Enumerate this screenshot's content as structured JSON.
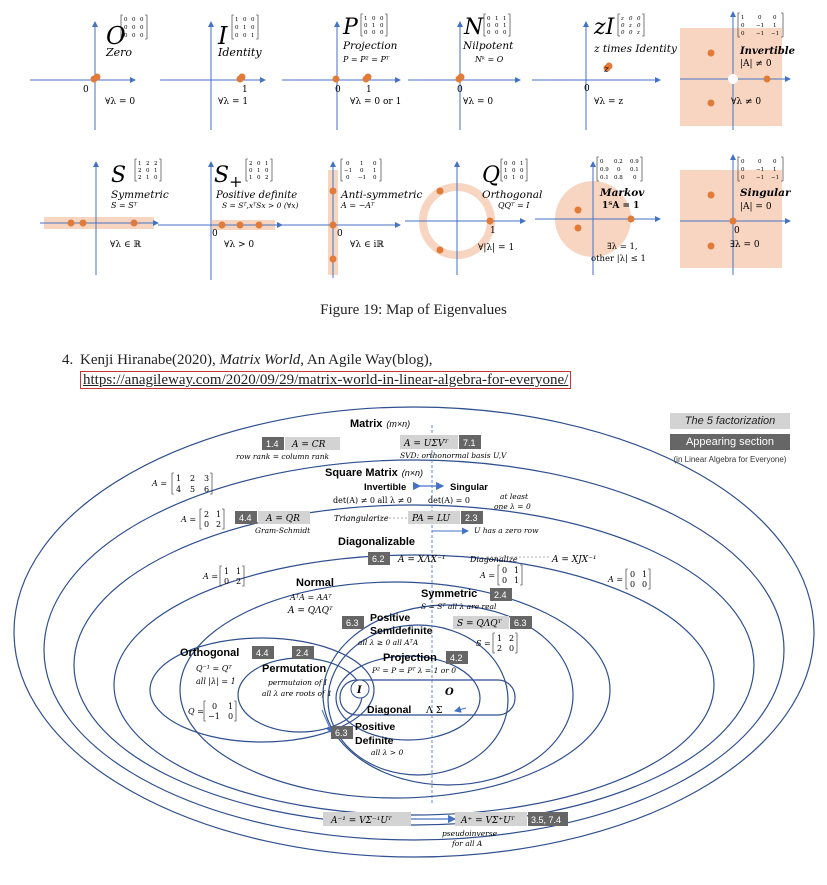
{
  "panels_row1": [
    {
      "symbol": "O",
      "name": "Zero",
      "matrix": [
        [
          "0",
          "0",
          "0"
        ],
        [
          "0",
          "0",
          "0"
        ],
        [
          "0",
          "0",
          "0"
        ]
      ],
      "formula": "",
      "condition": "∀λ = 0",
      "axis_labels": [
        "0"
      ]
    },
    {
      "symbol": "I",
      "name": "Identity",
      "matrix": [
        [
          "1",
          "0",
          "0"
        ],
        [
          "0",
          "1",
          "0"
        ],
        [
          "0",
          "0",
          "1"
        ]
      ],
      "formula": "",
      "condition": "∀λ = 1",
      "axis_labels": [
        "1"
      ]
    },
    {
      "symbol": "P",
      "name": "Projection",
      "matrix": [
        [
          "1",
          "0",
          "0"
        ],
        [
          "0",
          "1",
          "0"
        ],
        [
          "0",
          "0",
          "0"
        ]
      ],
      "formula": "P = P² = Pᵀ",
      "condition": "∀λ = 0 or 1",
      "axis_labels": [
        "0",
        "1"
      ]
    },
    {
      "symbol": "N",
      "name": "Nilpotent",
      "matrix": [
        [
          "0",
          "1",
          "1"
        ],
        [
          "0",
          "0",
          "1"
        ],
        [
          "0",
          "0",
          "0"
        ]
      ],
      "formula": "Nᵏ = O",
      "condition": "∀λ = 0",
      "axis_labels": [
        "0"
      ]
    },
    {
      "symbol": "zI",
      "name": "z times Identity",
      "matrix": [
        [
          "z",
          "0",
          "0"
        ],
        [
          "0",
          "z",
          "0"
        ],
        [
          "0",
          "0",
          "z"
        ]
      ],
      "formula": "",
      "condition": "∀λ = z",
      "axis_labels": [
        "0",
        "z"
      ]
    },
    {
      "symbol": "",
      "name": "Invertible",
      "matrix": [
        [
          "1",
          "0",
          "0"
        ],
        [
          "0",
          "−1",
          "1"
        ],
        [
          "0",
          "−1",
          "−1"
        ]
      ],
      "formula": "|A| ≠ 0",
      "condition": "∀λ ≠ 0",
      "axis_labels": []
    }
  ],
  "panels_row2": [
    {
      "symbol": "S",
      "name": "Symmetric",
      "matrix": [
        [
          "1",
          "2",
          "2"
        ],
        [
          "2",
          "0",
          "1"
        ],
        [
          "2",
          "1",
          "0"
        ]
      ],
      "formula": "S = Sᵀ",
      "condition": "∀λ ∈ ℝ",
      "axis_labels": []
    },
    {
      "symbol": "S+",
      "name": "Positive definite",
      "matrix": [
        [
          "2",
          "0",
          "1"
        ],
        [
          "0",
          "1",
          "0"
        ],
        [
          "1",
          "0",
          "2"
        ]
      ],
      "formula": "S = Sᵀ,xᵀSx > 0 (∀x)",
      "condition": "∀λ > 0",
      "axis_labels": [
        "0"
      ]
    },
    {
      "symbol": "",
      "name": "Anti-symmetric",
      "matrix": [
        [
          "0",
          "1",
          "0"
        ],
        [
          "−1",
          "0",
          "1"
        ],
        [
          "0",
          "−1",
          "0"
        ]
      ],
      "formula": "A = −Aᵀ",
      "condition": "∀λ ∈ iℝ",
      "axis_labels": [
        "0"
      ]
    },
    {
      "symbol": "Q",
      "name": "Orthogonal",
      "matrix": [
        [
          "0",
          "0",
          "1"
        ],
        [
          "1",
          "0",
          "0"
        ],
        [
          "0",
          "1",
          "0"
        ]
      ],
      "formula": "QQᵀ = I",
      "condition": "∀|λ| = 1",
      "axis_labels": [
        "1"
      ]
    },
    {
      "symbol": "",
      "name": "Markov",
      "matrix": [
        [
          "0",
          "0.2",
          "0.9"
        ],
        [
          "0.9",
          "0",
          "0.1"
        ],
        [
          "0.1",
          "0.8",
          "0"
        ]
      ],
      "formula": "1ᵀA = 1",
      "condition": "∃λ = 1,",
      "condition2": "other |λ| ≤ 1",
      "axis_labels": []
    },
    {
      "symbol": "",
      "name": "Singular",
      "matrix": [
        [
          "0",
          "0",
          "0"
        ],
        [
          "0",
          "−1",
          "1"
        ],
        [
          "0",
          "−1",
          "−1"
        ]
      ],
      "formula": "|A| = 0",
      "condition": "∃λ = 0",
      "axis_labels": [
        "0"
      ]
    }
  ],
  "figure_caption": "Figure 19: Map of Eigenvalues",
  "reference": {
    "number": "4.",
    "author": "Kenji Hiranabe(2020), ",
    "title": "Matrix World",
    "rest": ", An Agile Way(blog),",
    "url": "https://anagileway.com/2020/09/29/matrix-world-in-linear-algebra-for-everyone/"
  },
  "legend": {
    "factorization": "The 5 factorization",
    "section": "Appearing section",
    "note": "(in Linear Algebra for Everyone)"
  },
  "diagram": {
    "matrix_title": "Matrix",
    "matrix_dim": "(m×n)",
    "cr_section": "1.4",
    "cr_formula": "A = CR",
    "cr_note": "row rank = column rank",
    "svd_formula": "A = UΣVᵀ",
    "svd_section": "7.1",
    "svd_note": "SVD: orthonormal basis U,V",
    "a_rect": [
      [
        "1",
        "2",
        "3"
      ],
      [
        "4",
        "5",
        "6"
      ]
    ],
    "square_title": "Square Matrix",
    "square_dim": "(n×n)",
    "invertible": "Invertible",
    "singular": "Singular",
    "inv_cond": "det(A) ≠ 0  all λ ≠ 0",
    "sing_cond": "det(A) = 0",
    "sing_note1": "at least",
    "sing_note2": "one λ = 0",
    "a_sq": [
      [
        "2",
        "1"
      ],
      [
        "0",
        "2"
      ]
    ],
    "qr_section": "4.4",
    "qr_formula": "A = QR",
    "qr_note": "Gram-Schmidt",
    "triangularize": "Triangularize",
    "lu_formula": "PA = LU",
    "lu_section": "2.3",
    "lu_note": "U has a zero row",
    "diag_title": "Diagonalizable",
    "eig_section": "6.2",
    "eig_formula": "A = XΛX⁻¹",
    "diagonalize": "Diagonalize",
    "jordan_formula": "A = XJX⁻¹",
    "a_diag": [
      [
        "1",
        "1"
      ],
      [
        "0",
        "2"
      ]
    ],
    "a_jordan_inner": [
      [
        "0",
        "1"
      ],
      [
        "0",
        "1"
      ]
    ],
    "a_jordan_outer": [
      [
        "0",
        "1"
      ],
      [
        "0",
        "0"
      ]
    ],
    "normal_title": "Normal",
    "normal_f1": "AᵀA = AAᵀ",
    "normal_f2": "A = QΛQᵀ",
    "sym_title": "Symmetric",
    "sym_section": "2.4",
    "sym_note": "S = Sᵀ  all λ are real",
    "spectral_formula": "S = QΛQᵀ",
    "spectral_section": "6.3",
    "s_mat": [
      [
        "1",
        "2"
      ],
      [
        "2",
        "0"
      ]
    ],
    "psd_section": "6.3",
    "psd_title1": "Positive",
    "psd_title2": "Semidefinite",
    "psd_note": "all λ ≥ 0  all AᵀA",
    "orth_title": "Orthogonal",
    "orth_section": "4.4",
    "orth_note1": "Q⁻¹ = Qᵀ",
    "orth_note2": "all |λ| = 1",
    "q_mat": [
      [
        "0",
        "1"
      ],
      [
        "−1",
        "0"
      ]
    ],
    "perm_section": "2.4",
    "perm_title": "Permutation",
    "perm_note1": "permutaion of I",
    "perm_note2": "all λ are roots of 1",
    "proj_title": "Projection",
    "proj_section": "4.2",
    "proj_note": "P² = P = Pᵀ  λ = 1 or 0",
    "i_label": "I",
    "o_label": "O",
    "diagonal_title": "Diagonal",
    "diagonal_syms": "Λ   Σ",
    "pd_section": "6.3",
    "pd_title1": "Positive",
    "pd_title2": "Definite",
    "pd_note": "all λ > 0",
    "inv_formula": "A⁻¹ = VΣ⁻¹Uᵀ",
    "pinv_formula": "A⁺ = VΣ⁺Uᵀ",
    "pinv_section": "3.5, 7.4",
    "pinv_note1": "pseudoinverse",
    "pinv_note2": "for all A"
  },
  "colors": {
    "axis": "#4472c4",
    "dot": "#e07b39",
    "fill": "#f8d5c0",
    "ellipse": "#2f4f8f",
    "section": "#666666",
    "formula": "#d3d3d3"
  }
}
